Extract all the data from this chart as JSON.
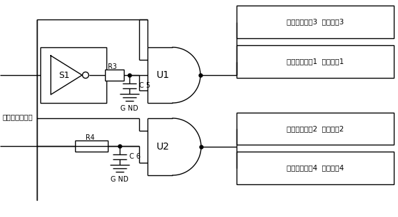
{
  "bg_color": "#ffffff",
  "line_color": "#000000",
  "labels": {
    "mcu_signal": "单片机输出信号",
    "S1": "S1",
    "R3": "R3",
    "R4": "R4",
    "C5": "C 5",
    "C6": "C 6",
    "GND1": "G ND",
    "GND2": "G ND",
    "U1": "U1",
    "U2": "U2",
    "box1_top": "驱动隔离电路3  驱动信号3",
    "box1_bot": "驱动隔离电路1  驱动信号1",
    "box2_top": "驱动隔离电路2  驱动信号2",
    "box2_bot": "驱动隔离电路4  驱动信号4"
  },
  "figsize": [
    5.72,
    3.12
  ],
  "dpi": 100
}
